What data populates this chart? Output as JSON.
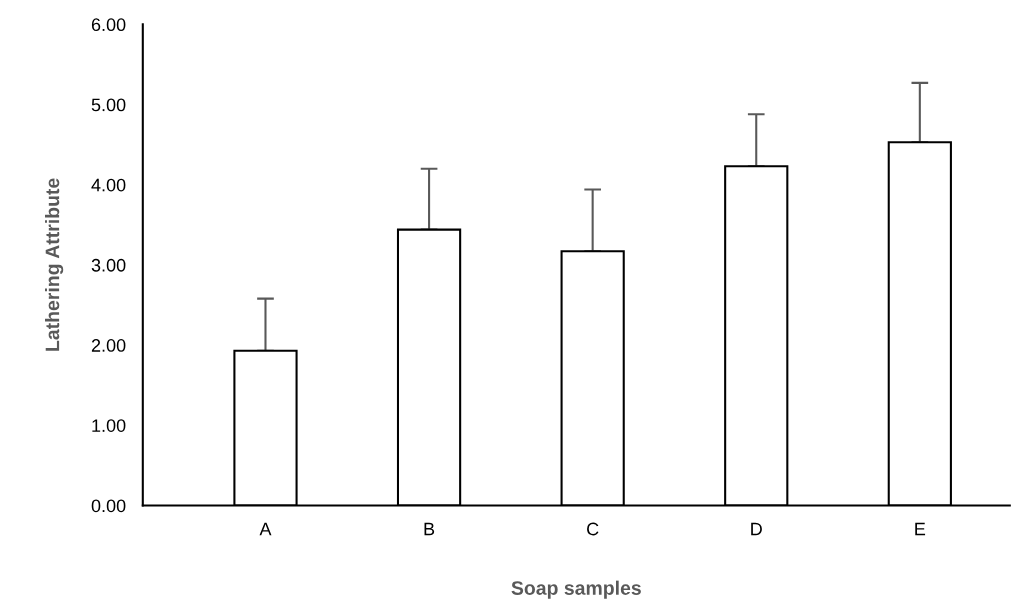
{
  "chart_data": {
    "type": "bar",
    "xlabel": "Soap samples",
    "ylabel": "Lathering Attribute",
    "categories": [
      "A",
      "B",
      "C",
      "D",
      "E"
    ],
    "values": [
      1.93,
      3.44,
      3.17,
      4.23,
      4.53
    ],
    "errors": [
      [
        1.93,
        2.58
      ],
      [
        3.44,
        4.2
      ],
      [
        3.17,
        3.94
      ],
      [
        4.23,
        4.88
      ],
      [
        4.53,
        5.27
      ]
    ],
    "color": "#ffffff",
    "ylim": [
      0,
      6
    ],
    "yticks": [
      {
        "value": 0,
        "label": "0.00"
      },
      {
        "value": 1,
        "label": "1.00"
      },
      {
        "value": 2,
        "label": "2.00"
      },
      {
        "value": 3,
        "label": "3.00"
      },
      {
        "value": 4,
        "label": "4.00"
      },
      {
        "value": 5,
        "label": "5.00"
      },
      {
        "value": 6,
        "label": "6.00"
      }
    ],
    "grid": false,
    "legend": false
  }
}
